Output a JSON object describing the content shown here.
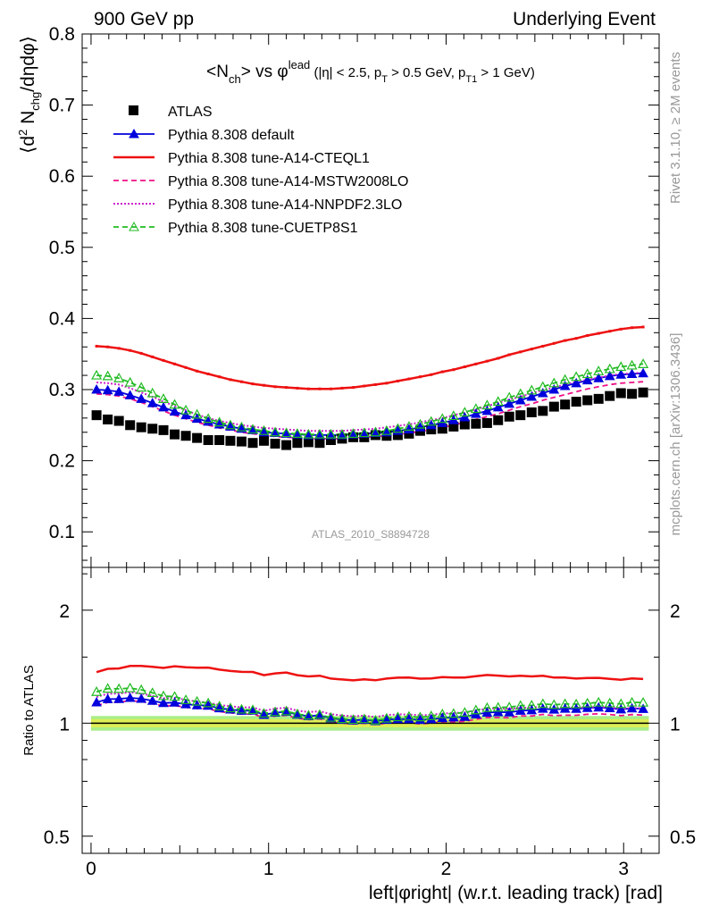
{
  "header": {
    "left": "900 GeV pp",
    "right": "Underlying Event"
  },
  "side": {
    "rivet": "Rivet 3.1.10, ≥ 2M events",
    "mcplots": "mcplots.cern.ch [arXiv:1306.3436]"
  },
  "watermark": "ATLAS_2010_S8894728",
  "upper": {
    "ylabel": "⟨d² Nchg/dηdφ⟩",
    "title": "<Nch> vs φlead (|η| < 2.5, pT > 0.5 GeV, pT1 > 1 GeV)",
    "ylim": [
      0.05,
      0.8
    ],
    "yticks": [
      "0.1",
      "0.2",
      "0.3",
      "0.4",
      "0.5",
      "0.6",
      "0.7",
      "0.8"
    ]
  },
  "lower": {
    "ylabel": "Ratio to ATLAS",
    "yticks": [
      "0.5",
      "1",
      "2"
    ]
  },
  "xlabel": "left|φright| (w.r.t. leading track) [rad]",
  "xticks": [
    "0",
    "1",
    "2",
    "3"
  ],
  "chart_data": {
    "type": "scatter",
    "x": [
      0.031,
      0.094,
      0.157,
      0.22,
      0.283,
      0.346,
      0.408,
      0.471,
      0.534,
      0.597,
      0.66,
      0.723,
      0.785,
      0.848,
      0.911,
      0.974,
      1.037,
      1.1,
      1.162,
      1.225,
      1.288,
      1.351,
      1.414,
      1.477,
      1.539,
      1.602,
      1.665,
      1.728,
      1.791,
      1.854,
      1.916,
      1.979,
      2.042,
      2.105,
      2.168,
      2.231,
      2.293,
      2.356,
      2.419,
      2.482,
      2.545,
      2.608,
      2.67,
      2.733,
      2.796,
      2.859,
      2.922,
      2.985,
      3.047,
      3.11
    ],
    "xlim": [
      -0.05,
      3.2
    ],
    "series": [
      {
        "name": "ATLAS",
        "style": "markers",
        "color": "#000000",
        "values": [
          0.264,
          0.258,
          0.256,
          0.25,
          0.247,
          0.245,
          0.243,
          0.237,
          0.235,
          0.232,
          0.229,
          0.229,
          0.228,
          0.227,
          0.225,
          0.228,
          0.224,
          0.222,
          0.225,
          0.226,
          0.225,
          0.229,
          0.231,
          0.233,
          0.233,
          0.236,
          0.235,
          0.236,
          0.238,
          0.242,
          0.244,
          0.245,
          0.248,
          0.251,
          0.252,
          0.253,
          0.257,
          0.262,
          0.264,
          0.268,
          0.27,
          0.276,
          0.279,
          0.283,
          0.285,
          0.287,
          0.291,
          0.295,
          0.294,
          0.296
        ]
      },
      {
        "name": "Pythia 8.308 default",
        "style": "line+triangles",
        "color": "#0000dd",
        "values": [
          0.3,
          0.299,
          0.297,
          0.292,
          0.287,
          0.281,
          0.275,
          0.269,
          0.264,
          0.259,
          0.255,
          0.251,
          0.248,
          0.245,
          0.243,
          0.24,
          0.239,
          0.238,
          0.237,
          0.236,
          0.236,
          0.236,
          0.236,
          0.237,
          0.238,
          0.239,
          0.24,
          0.242,
          0.244,
          0.247,
          0.25,
          0.253,
          0.257,
          0.261,
          0.266,
          0.27,
          0.275,
          0.28,
          0.285,
          0.29,
          0.295,
          0.3,
          0.305,
          0.309,
          0.313,
          0.316,
          0.319,
          0.321,
          0.322,
          0.323
        ]
      },
      {
        "name": "Pythia 8.308 tune-A14-CTEQL1",
        "style": "solid",
        "color": "#ee1111",
        "values": [
          0.361,
          0.36,
          0.358,
          0.355,
          0.351,
          0.346,
          0.341,
          0.336,
          0.331,
          0.326,
          0.322,
          0.318,
          0.314,
          0.311,
          0.308,
          0.306,
          0.304,
          0.303,
          0.302,
          0.301,
          0.301,
          0.301,
          0.302,
          0.303,
          0.305,
          0.307,
          0.309,
          0.312,
          0.315,
          0.318,
          0.321,
          0.325,
          0.328,
          0.332,
          0.336,
          0.34,
          0.344,
          0.349,
          0.353,
          0.357,
          0.361,
          0.365,
          0.369,
          0.372,
          0.376,
          0.379,
          0.382,
          0.385,
          0.387,
          0.388
        ]
      },
      {
        "name": "Pythia 8.308 tune-A14-MSTW2008LO",
        "style": "dashed",
        "color": "#ee1188",
        "values": [
          0.294,
          0.293,
          0.291,
          0.287,
          0.282,
          0.276,
          0.27,
          0.264,
          0.259,
          0.254,
          0.25,
          0.246,
          0.243,
          0.24,
          0.238,
          0.236,
          0.234,
          0.233,
          0.232,
          0.231,
          0.231,
          0.231,
          0.231,
          0.232,
          0.233,
          0.234,
          0.235,
          0.237,
          0.239,
          0.241,
          0.244,
          0.247,
          0.25,
          0.254,
          0.258,
          0.262,
          0.266,
          0.271,
          0.276,
          0.28,
          0.285,
          0.289,
          0.293,
          0.297,
          0.301,
          0.304,
          0.307,
          0.309,
          0.31,
          0.311
        ]
      },
      {
        "name": "Pythia 8.308 tune-A14-NNPDF2.3LO",
        "style": "dotted",
        "color": "#cc22cc",
        "values": [
          0.31,
          0.309,
          0.307,
          0.302,
          0.296,
          0.29,
          0.283,
          0.277,
          0.271,
          0.265,
          0.26,
          0.256,
          0.253,
          0.25,
          0.248,
          0.246,
          0.245,
          0.244,
          0.243,
          0.242,
          0.242,
          0.242,
          0.242,
          0.243,
          0.244,
          0.245,
          0.247,
          0.249,
          0.251,
          0.254,
          0.257,
          0.26,
          0.264,
          0.268,
          0.272,
          0.277,
          0.281,
          0.286,
          0.29,
          0.295,
          0.299,
          0.303,
          0.307,
          0.311,
          0.314,
          0.317,
          0.32,
          0.322,
          0.323,
          0.324
        ]
      },
      {
        "name": "Pythia 8.308 tune-CUETP8S1",
        "style": "dashed+open-triangles",
        "color": "#22bb22",
        "values": [
          0.32,
          0.319,
          0.316,
          0.31,
          0.303,
          0.295,
          0.287,
          0.279,
          0.271,
          0.265,
          0.259,
          0.254,
          0.25,
          0.247,
          0.244,
          0.242,
          0.24,
          0.239,
          0.238,
          0.237,
          0.237,
          0.237,
          0.237,
          0.238,
          0.239,
          0.24,
          0.242,
          0.245,
          0.248,
          0.251,
          0.255,
          0.259,
          0.263,
          0.268,
          0.273,
          0.278,
          0.283,
          0.289,
          0.294,
          0.299,
          0.304,
          0.309,
          0.314,
          0.318,
          0.322,
          0.326,
          0.329,
          0.332,
          0.334,
          0.336
        ]
      }
    ],
    "ratio": {
      "reference": "ATLAS",
      "ylim": [
        0.45,
        2.6
      ],
      "log_scale": true,
      "band": {
        "inner": [
          0.975,
          1.025
        ],
        "outer": [
          0.955,
          1.045
        ],
        "inner_color": "#ddee55",
        "outer_color": "#aaee88"
      }
    },
    "legend": "top-left"
  }
}
